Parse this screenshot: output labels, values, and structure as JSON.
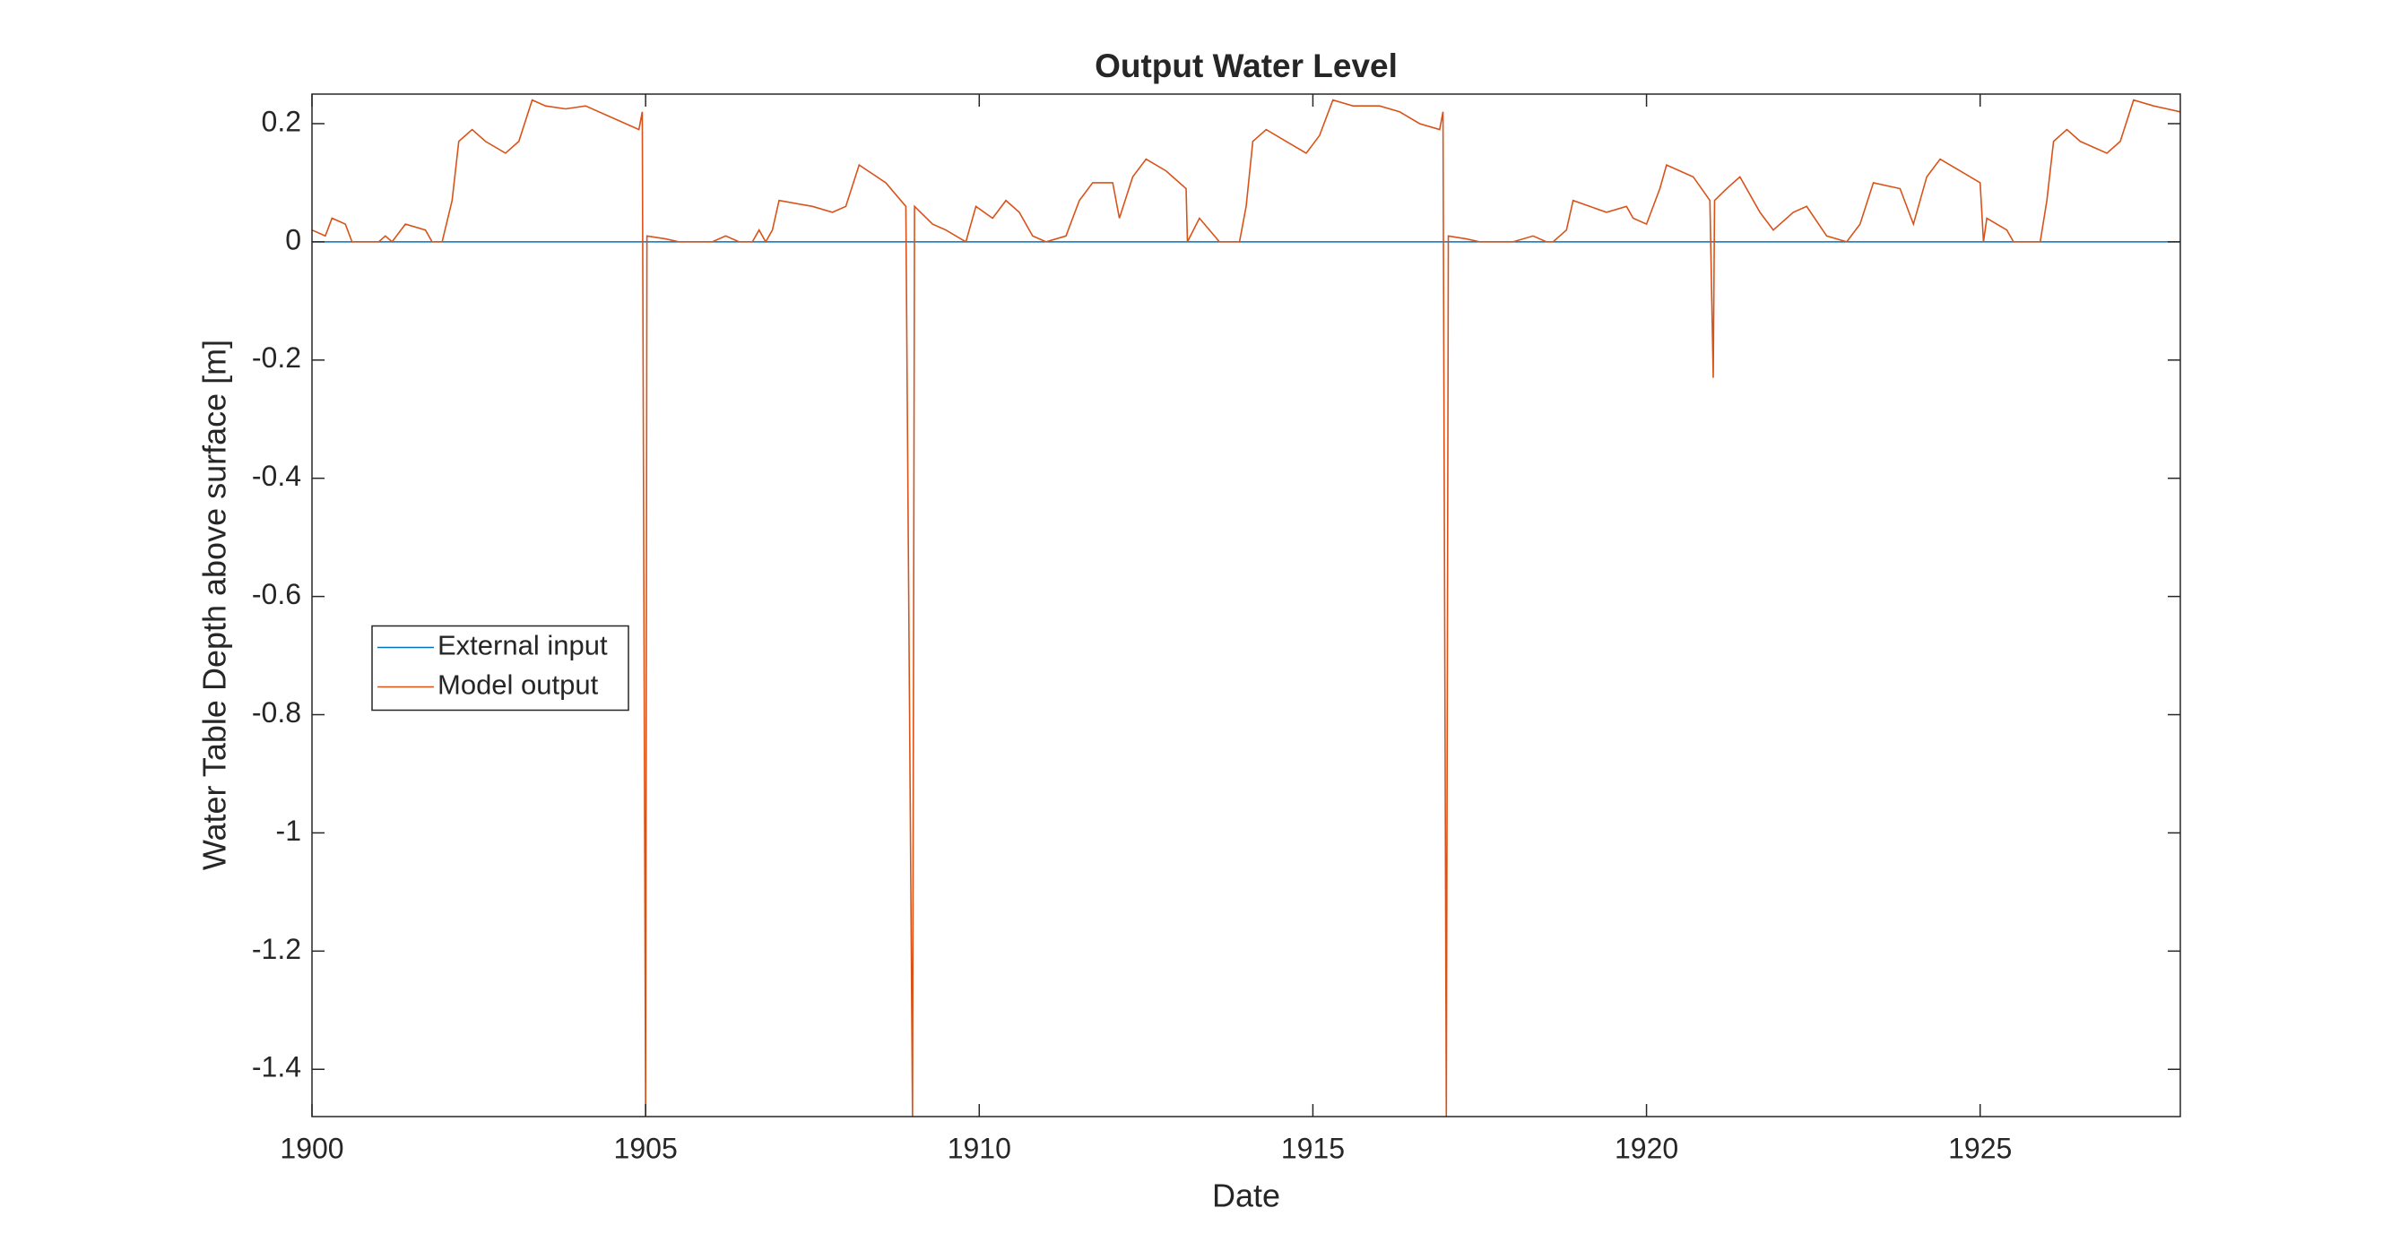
{
  "chart_data": {
    "type": "line",
    "title": "Output Water Level",
    "xlabel": "Date",
    "ylabel": "Water Table Depth above surface [m]",
    "xlim": [
      1900,
      1928
    ],
    "xticks": [
      1900,
      1905,
      1910,
      1915,
      1920,
      1925
    ],
    "ylim": [
      -1.48,
      0.25
    ],
    "yticks": [
      -1.4,
      -1.2,
      -1,
      -0.8,
      -0.6,
      -0.4,
      -0.2,
      0,
      0.2
    ],
    "grid": false,
    "legend": "west",
    "series": [
      {
        "name": "External input",
        "color": "#0072bd",
        "x": [
          1900,
          1928
        ],
        "values": [
          0,
          0
        ]
      },
      {
        "name": "Model output",
        "color": "#d95319",
        "x": [
          1900.0,
          1900.2,
          1900.3,
          1900.5,
          1900.6,
          1901.0,
          1901.1,
          1901.2,
          1901.4,
          1901.7,
          1901.8,
          1901.95,
          1902.1,
          1902.2,
          1902.4,
          1902.6,
          1902.9,
          1903.1,
          1903.3,
          1903.5,
          1903.8,
          1904.1,
          1904.5,
          1904.9,
          1904.95,
          1905.0,
          1905.02,
          1905.3,
          1905.5,
          1906.0,
          1906.2,
          1906.4,
          1906.6,
          1906.7,
          1906.8,
          1906.9,
          1907.0,
          1907.5,
          1907.8,
          1908.0,
          1908.2,
          1908.6,
          1908.9,
          1909.0,
          1909.03,
          1909.3,
          1909.5,
          1909.8,
          1909.95,
          1910.2,
          1910.4,
          1910.6,
          1910.8,
          1911.0,
          1911.3,
          1911.5,
          1911.7,
          1912.0,
          1912.1,
          1912.3,
          1912.5,
          1912.8,
          1913.1,
          1913.12,
          1913.3,
          1913.6,
          1913.9,
          1914.0,
          1914.1,
          1914.3,
          1914.6,
          1914.9,
          1915.1,
          1915.3,
          1915.6,
          1916.0,
          1916.3,
          1916.6,
          1916.9,
          1916.95,
          1917.0,
          1917.03,
          1917.3,
          1917.5,
          1918.0,
          1918.3,
          1918.5,
          1918.6,
          1918.8,
          1918.9,
          1919.4,
          1919.7,
          1919.8,
          1920.0,
          1920.2,
          1920.3,
          1920.7,
          1920.95,
          1921.0,
          1921.02,
          1921.2,
          1921.4,
          1921.7,
          1921.9,
          1922.2,
          1922.4,
          1922.7,
          1923.0,
          1923.2,
          1923.4,
          1923.8,
          1924.0,
          1924.2,
          1924.4,
          1924.7,
          1925.0,
          1925.05,
          1925.1,
          1925.4,
          1925.5,
          1925.9,
          1926.0,
          1926.1,
          1926.3,
          1926.5,
          1926.9,
          1927.1,
          1927.3,
          1927.6,
          1928.0
        ],
        "values": [
          0.02,
          0.01,
          0.04,
          0.03,
          0.0,
          0.0,
          0.01,
          0.0,
          0.03,
          0.02,
          0.0,
          0.0,
          0.07,
          0.17,
          0.19,
          0.17,
          0.15,
          0.17,
          0.24,
          0.23,
          0.225,
          0.23,
          0.21,
          0.19,
          0.22,
          -1.48,
          0.01,
          0.005,
          0.0,
          0.0,
          0.01,
          0.0,
          0.0,
          0.02,
          0.0,
          0.02,
          0.07,
          0.06,
          0.05,
          0.06,
          0.13,
          0.1,
          0.06,
          -1.48,
          0.06,
          0.03,
          0.02,
          0.0,
          0.06,
          0.04,
          0.07,
          0.05,
          0.01,
          0.0,
          0.01,
          0.07,
          0.1,
          0.1,
          0.04,
          0.11,
          0.14,
          0.12,
          0.09,
          0.0,
          0.04,
          0.0,
          0.0,
          0.06,
          0.17,
          0.19,
          0.17,
          0.15,
          0.18,
          0.24,
          0.23,
          0.23,
          0.22,
          0.2,
          0.19,
          0.22,
          -1.48,
          0.01,
          0.005,
          0.0,
          0.0,
          0.01,
          0.0,
          0.0,
          0.02,
          0.07,
          0.05,
          0.06,
          0.04,
          0.03,
          0.09,
          0.13,
          0.11,
          0.07,
          -0.23,
          0.07,
          0.09,
          0.11,
          0.05,
          0.02,
          0.05,
          0.06,
          0.01,
          0.0,
          0.03,
          0.1,
          0.09,
          0.03,
          0.11,
          0.14,
          0.12,
          0.1,
          0.0,
          0.04,
          0.02,
          0.0,
          0.0,
          0.07,
          0.17,
          0.19,
          0.17,
          0.15,
          0.17,
          0.24,
          0.23,
          0.22
        ]
      }
    ]
  }
}
